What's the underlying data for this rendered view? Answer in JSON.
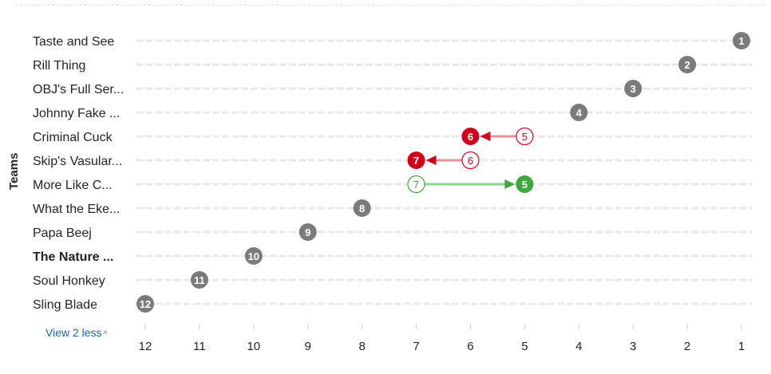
{
  "chart_data": {
    "type": "scatter",
    "subtype": "dumbbell-rank",
    "ylabel": "Teams",
    "x_axis_reversed": true,
    "xlim": [
      12,
      1
    ],
    "x_ticks": [
      12,
      11,
      10,
      9,
      8,
      7,
      6,
      5,
      4,
      3,
      2,
      1
    ],
    "grid": "horizontal dotted",
    "teams": [
      {
        "name": "Taste and See",
        "rank": 1,
        "bold": false
      },
      {
        "name": "Rill Thing",
        "rank": 2,
        "bold": false
      },
      {
        "name": "OBJ's Full Ser...",
        "rank": 3,
        "bold": false
      },
      {
        "name": "Johnny Fake ...",
        "rank": 4,
        "bold": false
      },
      {
        "name": "Criminal Cuck",
        "rank": 6,
        "prev_rank": 5,
        "change": "down",
        "bold": false
      },
      {
        "name": "Skip's Vasular...",
        "rank": 7,
        "prev_rank": 6,
        "change": "down",
        "bold": false
      },
      {
        "name": "More Like C...",
        "rank": 5,
        "prev_rank": 7,
        "change": "up",
        "bold": false
      },
      {
        "name": "What the Eke...",
        "rank": 8,
        "bold": false
      },
      {
        "name": "Papa Beej",
        "rank": 9,
        "bold": false
      },
      {
        "name": "The Nature ...",
        "rank": 10,
        "bold": true
      },
      {
        "name": "Soul Honkey",
        "rank": 11,
        "bold": false
      },
      {
        "name": "Sling Blade",
        "rank": 12,
        "bold": false
      }
    ],
    "colors": {
      "neutral": "#7b7b7b",
      "down": "#d0021b",
      "up": "#3ea83e",
      "down_line": "#ea8f99",
      "up_line": "#8fd18f",
      "grid": "#e8e8e8"
    }
  },
  "controls": {
    "view_less_label": "View 2 less",
    "view_less_caret": "^"
  }
}
